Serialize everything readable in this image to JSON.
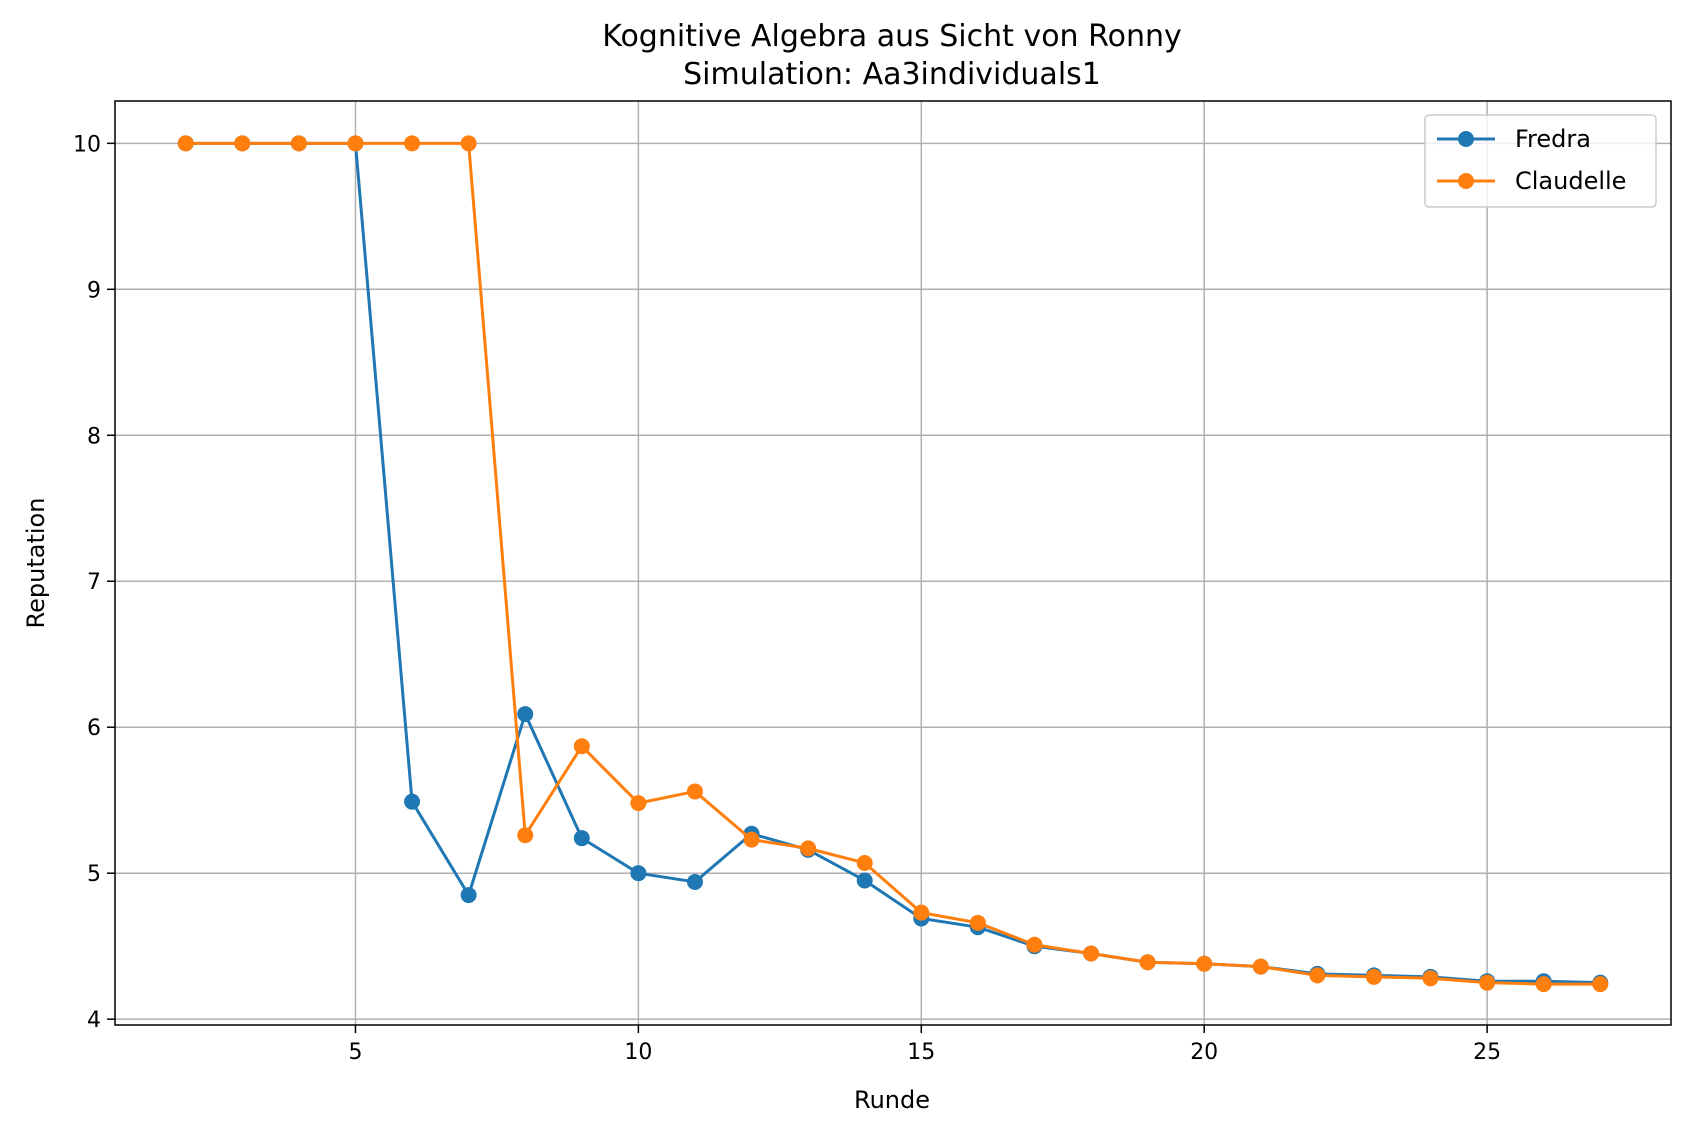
{
  "chart_data": {
    "type": "line",
    "title": "Kognitive Algebra aus Sicht von Ronny",
    "subtitle": "Simulation: Aa3individuals1",
    "xlabel": "Runde",
    "ylabel": "Reputation",
    "xlim": [
      0.75,
      28.25
    ],
    "ylim": [
      3.96,
      10.29
    ],
    "xticks": [
      5,
      10,
      15,
      20,
      25
    ],
    "yticks": [
      4,
      5,
      6,
      7,
      8,
      9,
      10
    ],
    "grid": true,
    "legend_position": "top-right",
    "series": [
      {
        "name": "Fredra",
        "color": "#1f77b4",
        "x": [
          2,
          3,
          4,
          5,
          6,
          7,
          8,
          9,
          10,
          11,
          12,
          13,
          14,
          15,
          16,
          17,
          18,
          19,
          20,
          21,
          22,
          23,
          24,
          25,
          26,
          27
        ],
        "y": [
          10,
          10,
          10,
          10,
          5.49,
          4.85,
          6.09,
          5.24,
          5.0,
          4.94,
          5.27,
          5.16,
          4.95,
          4.69,
          4.63,
          4.5,
          4.45,
          4.39,
          4.38,
          4.36,
          4.31,
          4.3,
          4.29,
          4.26,
          4.26,
          4.25
        ]
      },
      {
        "name": "Claudelle",
        "color": "#ff7f0e",
        "x": [
          2,
          3,
          4,
          5,
          6,
          7,
          8,
          9,
          10,
          11,
          12,
          13,
          14,
          15,
          16,
          17,
          18,
          19,
          20,
          21,
          22,
          23,
          24,
          25,
          26,
          27
        ],
        "y": [
          10,
          10,
          10,
          10,
          10,
          10,
          5.26,
          5.87,
          5.48,
          5.56,
          5.23,
          5.17,
          5.07,
          4.73,
          4.66,
          4.51,
          4.45,
          4.39,
          4.38,
          4.36,
          4.3,
          4.29,
          4.28,
          4.25,
          4.24,
          4.24
        ]
      }
    ]
  }
}
